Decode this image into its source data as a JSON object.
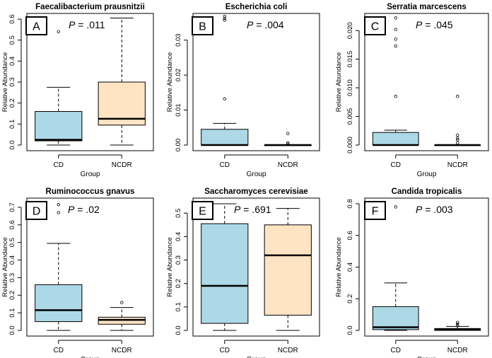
{
  "chart_data": [
    {
      "type": "boxplot",
      "panel_label": "A",
      "title": "Faecalibacterium prausnitzii",
      "p_prefix": "P",
      "p_value": " = .011",
      "xlabel": "Group",
      "ylabel": "Relative Abundance",
      "categories": [
        "CD",
        "NCDR"
      ],
      "ylim": [
        0,
        0.6
      ],
      "yticks": [
        "0.0",
        "0.1",
        "0.2",
        "0.3",
        "0.4",
        "0.5",
        "0.6"
      ],
      "ytick_values": [
        0,
        0.1,
        0.2,
        0.3,
        0.4,
        0.5,
        0.6
      ],
      "boxes": [
        {
          "group": "CD",
          "whisker_low": 0.0,
          "q1": 0.02,
          "median": 0.025,
          "q3": 0.16,
          "whisker_high": 0.275,
          "outliers": [
            0.54
          ],
          "color": "#add8e6"
        },
        {
          "group": "NCDR",
          "whisker_low": 0.0,
          "q1": 0.095,
          "median": 0.125,
          "q3": 0.3,
          "whisker_high": 0.605,
          "outliers": [],
          "color": "#ffe4c4"
        }
      ]
    },
    {
      "type": "boxplot",
      "panel_label": "B",
      "title": "Escherichia coli",
      "p_prefix": "P",
      "p_value": " = .004",
      "xlabel": "Group",
      "ylabel": "Relative Abundance",
      "categories": [
        "CD",
        "NCDR"
      ],
      "ylim": [
        0,
        0.036
      ],
      "yticks": [
        "0.00",
        "0.01",
        "0.02",
        "0.03"
      ],
      "ytick_values": [
        0,
        0.01,
        0.02,
        0.03
      ],
      "boxes": [
        {
          "group": "CD",
          "whisker_low": 0.0,
          "q1": 0.0,
          "median": 0.0,
          "q3": 0.0045,
          "whisker_high": 0.0062,
          "outliers": [
            0.0132,
            0.0357,
            0.0362,
            0.0368
          ],
          "color": "#add8e6"
        },
        {
          "group": "NCDR",
          "whisker_low": 0.0,
          "q1": 0.0,
          "median": 0.0,
          "q3": 0.0,
          "whisker_high": 0.0,
          "outliers": [
            0.0003,
            0.0006,
            0.0033
          ],
          "color": "#ffe4c4"
        }
      ]
    },
    {
      "type": "boxplot",
      "panel_label": "C",
      "title": "Serratia marcescens",
      "p_prefix": "P",
      "p_value": " = .045",
      "xlabel": "Group",
      "ylabel": "Relative Abundance",
      "categories": [
        "CD",
        "NCDR"
      ],
      "ylim": [
        0,
        0.022
      ],
      "yticks": [
        "0.000",
        "0.005",
        "0.010",
        "0.015",
        "0.020"
      ],
      "ytick_values": [
        0,
        0.005,
        0.01,
        0.015,
        0.02
      ],
      "boxes": [
        {
          "group": "CD",
          "whisker_low": 0.0,
          "q1": 0.0,
          "median": 0.0,
          "q3": 0.0022,
          "whisker_high": 0.0026,
          "outliers": [
            0.0085,
            0.0173,
            0.0185,
            0.0202,
            0.0222
          ],
          "color": "#add8e6"
        },
        {
          "group": "NCDR",
          "whisker_low": 0.0,
          "q1": 0.0,
          "median": 0.0,
          "q3": 0.0,
          "whisker_high": 0.0,
          "outliers": [
            0.0004,
            0.0009,
            0.0012,
            0.0017,
            0.0085
          ],
          "color": "#ffe4c4"
        }
      ]
    },
    {
      "type": "boxplot",
      "panel_label": "D",
      "title": "Ruminococcus gnavus",
      "p_prefix": "P",
      "p_value": " = .02",
      "xlabel": "Group",
      "ylabel": "Relative Abundance",
      "categories": [
        "CD",
        "NCDR"
      ],
      "ylim": [
        0,
        0.72
      ],
      "yticks": [
        "0.0",
        "0.1",
        "0.2",
        "0.3",
        "0.4",
        "0.5",
        "0.6",
        "0.7"
      ],
      "ytick_values": [
        0,
        0.1,
        0.2,
        0.3,
        0.4,
        0.5,
        0.6,
        0.7
      ],
      "boxes": [
        {
          "group": "CD",
          "whisker_low": 0.0,
          "q1": 0.05,
          "median": 0.115,
          "q3": 0.26,
          "whisker_high": 0.495,
          "outliers": [
            0.67,
            0.715
          ],
          "color": "#add8e6"
        },
        {
          "group": "NCDR",
          "whisker_low": 0.0,
          "q1": 0.035,
          "median": 0.06,
          "q3": 0.075,
          "whisker_high": 0.13,
          "outliers": [
            0.158
          ],
          "color": "#ffe4c4"
        }
      ]
    },
    {
      "type": "boxplot",
      "panel_label": "E",
      "title": "Saccharomyces cerevisiae",
      "p_prefix": "P",
      "p_value": " = .691",
      "xlabel": "Group",
      "ylabel": "Relative Abundance",
      "categories": [
        "CD",
        "NCDR"
      ],
      "ylim": [
        0,
        0.54
      ],
      "yticks": [
        "0.0",
        "0.1",
        "0.2",
        "0.3",
        "0.4",
        "0.5"
      ],
      "ytick_values": [
        0,
        0.1,
        0.2,
        0.3,
        0.4,
        0.5
      ],
      "boxes": [
        {
          "group": "CD",
          "whisker_low": 0.0,
          "q1": 0.03,
          "median": 0.19,
          "q3": 0.455,
          "whisker_high": 0.54,
          "outliers": [],
          "color": "#add8e6"
        },
        {
          "group": "NCDR",
          "whisker_low": 0.0,
          "q1": 0.065,
          "median": 0.32,
          "q3": 0.45,
          "whisker_high": 0.52,
          "outliers": [],
          "color": "#ffe4c4"
        }
      ]
    },
    {
      "type": "boxplot",
      "panel_label": "F",
      "title": "Candida tropicalis",
      "p_prefix": "P",
      "p_value": " = .003",
      "xlabel": "Group",
      "ylabel": "Relative Abundance",
      "categories": [
        "CD",
        "NCDR"
      ],
      "ylim": [
        0,
        0.8
      ],
      "yticks": [
        "0.0",
        "0.2",
        "0.4",
        "0.6",
        "0.8"
      ],
      "ytick_values": [
        0,
        0.2,
        0.4,
        0.6,
        0.8
      ],
      "boxes": [
        {
          "group": "CD",
          "whisker_low": 0.0,
          "q1": 0.005,
          "median": 0.02,
          "q3": 0.15,
          "whisker_high": 0.3,
          "outliers": [
            0.78
          ],
          "color": "#add8e6"
        },
        {
          "group": "NCDR",
          "whisker_low": 0.0,
          "q1": 0.0,
          "median": 0.008,
          "q3": 0.012,
          "whisker_high": 0.025,
          "outliers": [
            0.03,
            0.04,
            0.05
          ],
          "color": "#ffe4c4"
        }
      ]
    }
  ]
}
